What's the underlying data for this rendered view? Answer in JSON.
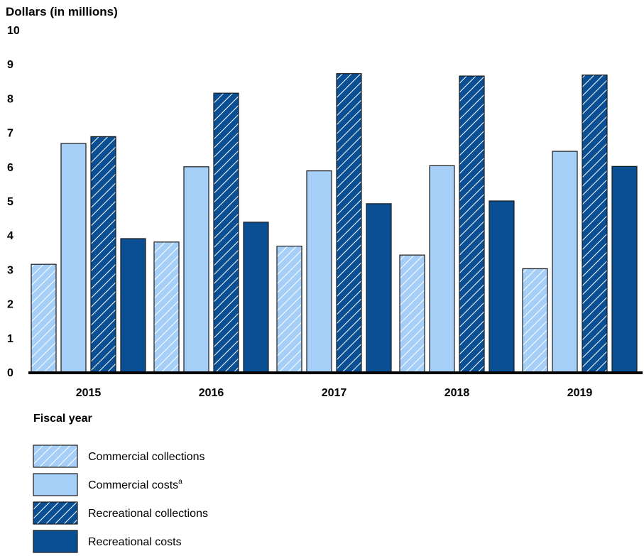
{
  "chart_data": {
    "type": "bar",
    "ylabel": "Dollars (in millions)",
    "xlabel": "Fiscal year",
    "ylim": [
      0,
      10
    ],
    "yticks": [
      "0",
      "1",
      "2",
      "3",
      "4",
      "5",
      "6",
      "7",
      "8",
      "9",
      "10"
    ],
    "categories": [
      "2015",
      "2016",
      "2017",
      "2018",
      "2019"
    ],
    "series": [
      {
        "name": "Commercial collections",
        "footnote": "",
        "values": [
          3.15,
          3.8,
          3.68,
          3.42,
          3.02
        ],
        "color": "#a6cff7",
        "pattern": "hatched"
      },
      {
        "name": "Commercial costs",
        "footnote": "a",
        "values": [
          6.68,
          6.0,
          5.88,
          6.03,
          6.45
        ],
        "color": "#a6cff7",
        "pattern": "solid"
      },
      {
        "name": "Recreational collections",
        "footnote": "",
        "values": [
          6.88,
          8.15,
          8.72,
          8.65,
          8.68
        ],
        "color": "#0a4f94",
        "pattern": "hatched"
      },
      {
        "name": "Recreational costs",
        "footnote": "",
        "values": [
          3.9,
          4.38,
          4.92,
          5.0,
          6.01
        ],
        "color": "#0a4f94",
        "pattern": "solid"
      }
    ],
    "legend_position": "bottom-left",
    "grid": false
  }
}
